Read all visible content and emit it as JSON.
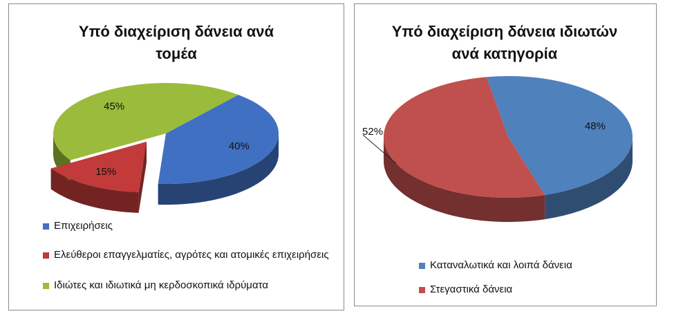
{
  "chart_data": [
    {
      "type": "pie3d",
      "title": "Υπό διαχείριση δάνεια ανά τομέα",
      "categories": [
        "Επιχειρήσεις",
        "Ελεύθεροι επαγγελματίες, αγρότες και ατομικές επιχειρήσεις",
        "Ιδιώτες και ιδιωτικά μη κερδοσκοπικά ιδρύματα"
      ],
      "values": [
        40,
        15,
        45
      ],
      "value_labels": [
        "40%",
        "15%",
        "45%"
      ],
      "colors": [
        "#3f70c2",
        "#c23a3a",
        "#9bbb3c"
      ],
      "legend": "bottom"
    },
    {
      "type": "pie3d",
      "title": "Υπό διαχείριση δάνεια ιδιωτών ανά κατηγορία",
      "categories": [
        "Καταναλωτικά και λοιπά δάνεια",
        "Στεγαστικά δάνεια"
      ],
      "values": [
        48,
        52
      ],
      "value_labels": [
        "48%",
        "52%"
      ],
      "colors": [
        "#4f81bd",
        "#c0504d"
      ],
      "legend": "bottom"
    }
  ]
}
